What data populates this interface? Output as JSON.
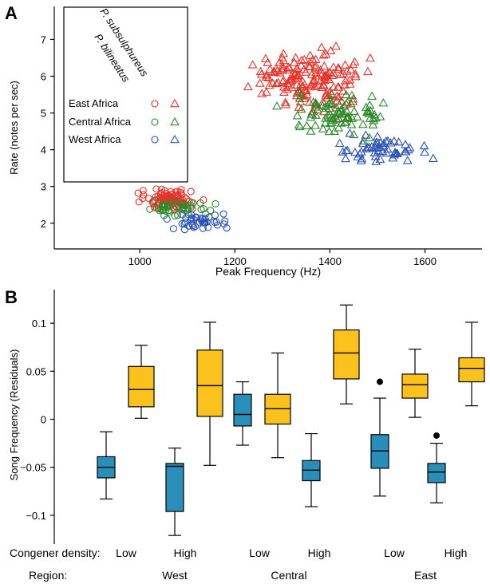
{
  "panel_a_label": "A",
  "panel_b_label": "B",
  "chart_data": [
    {
      "type": "scatter",
      "panel": "A",
      "xlabel": "Peak Frequency (Hz)",
      "ylabel": "Rate (notes per sec)",
      "xlim": [
        820,
        1720
      ],
      "ylim": [
        1.3,
        7.9
      ],
      "xticks": [
        1000,
        1200,
        1400,
        1600
      ],
      "yticks": [
        2,
        3,
        4,
        5,
        6,
        7
      ],
      "legend": {
        "placement": "top-left",
        "column_headers": [
          "P. bilineatus",
          "P. subsulphureus"
        ],
        "markers": [
          "circle",
          "triangle"
        ],
        "rows": [
          {
            "label": "East Africa",
            "color": "#e8332a"
          },
          {
            "label": "Central Africa",
            "color": "#2a8a2a"
          },
          {
            "label": "West Africa",
            "color": "#2a52b4"
          }
        ]
      },
      "clusters": [
        {
          "species": "P. bilineatus",
          "region": "East Africa",
          "marker": "circle",
          "color": "#e8332a",
          "x_range": [
            975,
            1140
          ],
          "y_range": [
            2.3,
            3.05
          ],
          "x_center": 1060,
          "y_center": 2.65,
          "n": 95
        },
        {
          "species": "P. bilineatus",
          "region": "Central Africa",
          "marker": "circle",
          "color": "#2a8a2a",
          "x_range": [
            990,
            1200
          ],
          "y_range": [
            2.2,
            2.7
          ],
          "x_center": 1080,
          "y_center": 2.42,
          "n": 45
        },
        {
          "species": "P. bilineatus",
          "region": "West Africa",
          "marker": "circle",
          "color": "#2a52b4",
          "x_range": [
            1050,
            1215
          ],
          "y_range": [
            1.75,
            2.4
          ],
          "x_center": 1120,
          "y_center": 2.05,
          "n": 40
        },
        {
          "species": "P. subsulphureus",
          "region": "East Africa",
          "marker": "triangle",
          "color": "#e8332a",
          "x_range": [
            1225,
            1530
          ],
          "y_range": [
            4.8,
            7.25
          ],
          "x_center": 1360,
          "y_center": 5.9,
          "n": 170
        },
        {
          "species": "P. subsulphureus",
          "region": "Central Africa",
          "marker": "triangle",
          "color": "#2a8a2a",
          "x_range": [
            1260,
            1560
          ],
          "y_range": [
            4.1,
            5.7
          ],
          "x_center": 1410,
          "y_center": 4.9,
          "n": 85
        },
        {
          "species": "P. subsulphureus",
          "region": "West Africa",
          "marker": "triangle",
          "color": "#2a52b4",
          "x_range": [
            1360,
            1640
          ],
          "y_range": [
            3.4,
            4.6
          ],
          "x_center": 1500,
          "y_center": 4.0,
          "n": 55
        }
      ]
    },
    {
      "type": "boxplot",
      "panel": "B",
      "xlabel": "",
      "ylabel": "Song Frequency (Residuals)",
      "ylim": [
        -0.13,
        0.135
      ],
      "yticks": [
        -0.1,
        -0.05,
        0,
        0.05,
        0.1
      ],
      "ytick_labels": [
        "−0.1",
        "−0.05",
        "0",
        "0.05",
        "0.1"
      ],
      "row_labels": {
        "density": "Congener density:",
        "region": "Region:"
      },
      "groups": [
        {
          "region": "West",
          "density": "Low"
        },
        {
          "region": "West",
          "density": "High"
        },
        {
          "region": "Central",
          "density": "Low"
        },
        {
          "region": "Central",
          "density": "High"
        },
        {
          "region": "East",
          "density": "Low"
        },
        {
          "region": "East",
          "density": "High"
        }
      ],
      "colors": {
        "blue": "#2a8fb8",
        "yellow": "#fbc21e"
      },
      "boxes": [
        {
          "group": 0,
          "color": "blue",
          "whisker_low": -0.083,
          "q1": -0.061,
          "median": -0.05,
          "q3": -0.039,
          "whisker_high": -0.013,
          "outliers": []
        },
        {
          "group": 0,
          "color": "yellow",
          "whisker_low": 0.001,
          "q1": 0.013,
          "median": 0.031,
          "q3": 0.055,
          "whisker_high": 0.077,
          "outliers": []
        },
        {
          "group": 1,
          "color": "blue",
          "whisker_low": -0.121,
          "q1": -0.096,
          "median": -0.049,
          "q3": -0.046,
          "whisker_high": -0.03,
          "outliers": []
        },
        {
          "group": 1,
          "color": "yellow",
          "whisker_low": -0.048,
          "q1": 0.003,
          "median": 0.035,
          "q3": 0.072,
          "whisker_high": 0.101,
          "outliers": []
        },
        {
          "group": 2,
          "color": "blue",
          "whisker_low": -0.027,
          "q1": -0.007,
          "median": 0.005,
          "q3": 0.026,
          "whisker_high": 0.039,
          "outliers": []
        },
        {
          "group": 2,
          "color": "yellow",
          "whisker_low": -0.04,
          "q1": -0.005,
          "median": 0.011,
          "q3": 0.026,
          "whisker_high": 0.069,
          "outliers": []
        },
        {
          "group": 3,
          "color": "blue",
          "whisker_low": -0.091,
          "q1": -0.064,
          "median": -0.053,
          "q3": -0.043,
          "whisker_high": -0.015,
          "outliers": []
        },
        {
          "group": 3,
          "color": "yellow",
          "whisker_low": 0.016,
          "q1": 0.042,
          "median": 0.069,
          "q3": 0.093,
          "whisker_high": 0.119,
          "outliers": []
        },
        {
          "group": 4,
          "color": "blue",
          "whisker_low": -0.08,
          "q1": -0.051,
          "median": -0.033,
          "q3": -0.016,
          "whisker_high": 0.022,
          "outliers": [
            0.039
          ]
        },
        {
          "group": 4,
          "color": "yellow",
          "whisker_low": 0.002,
          "q1": 0.022,
          "median": 0.036,
          "q3": 0.047,
          "whisker_high": 0.073,
          "outliers": []
        },
        {
          "group": 5,
          "color": "blue",
          "whisker_low": -0.087,
          "q1": -0.066,
          "median": -0.055,
          "q3": -0.046,
          "whisker_high": -0.025,
          "outliers": [
            -0.017
          ]
        },
        {
          "group": 5,
          "color": "yellow",
          "whisker_low": 0.014,
          "q1": 0.039,
          "median": 0.053,
          "q3": 0.064,
          "whisker_high": 0.101,
          "outliers": []
        }
      ]
    }
  ]
}
